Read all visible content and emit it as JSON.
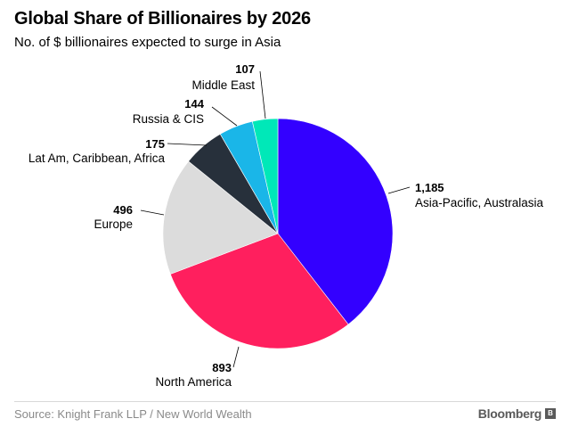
{
  "chart_data": {
    "type": "pie",
    "title": "Global Share of Billionaires by 2026",
    "subtitle": "No. of $ billionaires expected to surge in Asia",
    "slices": [
      {
        "label": "Asia-Pacific, Australasia",
        "value": 1185,
        "value_text": "1,185",
        "color": "#3300ff"
      },
      {
        "label": "North America",
        "value": 893,
        "value_text": "893",
        "color": "#ff1f5e"
      },
      {
        "label": "Europe",
        "value": 496,
        "value_text": "496",
        "color": "#dcdcdc"
      },
      {
        "label": "Lat Am, Caribbean, Africa",
        "value": 175,
        "value_text": "175",
        "color": "#27303b"
      },
      {
        "label": "Russia & CIS",
        "value": 144,
        "value_text": "144",
        "color": "#1ab6e8"
      },
      {
        "label": "Middle East",
        "value": 107,
        "value_text": "107",
        "color": "#00e8b8"
      }
    ],
    "start": "12 o'clock",
    "direction": "clockwise"
  },
  "footer": {
    "source": "Source: Knight Frank LLP / New World Wealth",
    "brand": "Bloomberg",
    "brand_mark": "B"
  }
}
